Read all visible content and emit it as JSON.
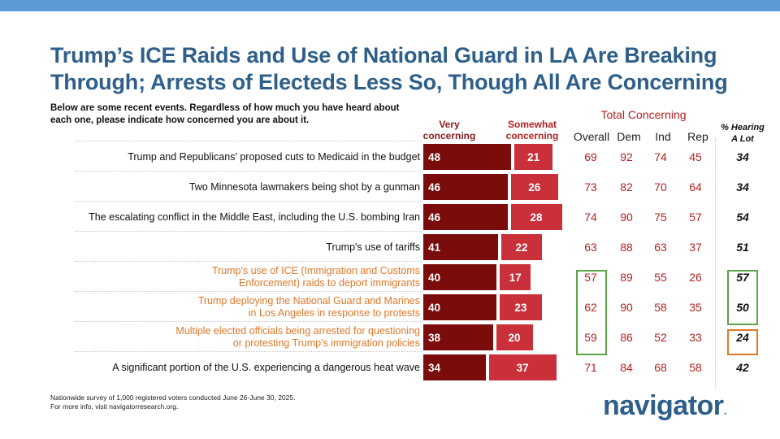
{
  "title": "Trump’s ICE Raids and Use of National Guard in LA Are Breaking Through; Arrests of Electeds Less So, Though All Are Concerning",
  "question": "Below are some recent events. Regardless of how much you have heard about each one, please indicate how concerned you are about it.",
  "headers": {
    "very": "Very concerning",
    "somewhat": "Somewhat concerning",
    "total": "Total Concerning",
    "overall": "Overall",
    "dem": "Dem",
    "ind": "Ind",
    "rep": "Rep",
    "hearing": "% Hearing A Lot"
  },
  "colors": {
    "title": "#2e5f8a",
    "very": "#7a0c0c",
    "somewhat": "#c9303a",
    "highlight_orange": "#e0782a",
    "box_green": "#5aa647",
    "box_orange": "#e0782a",
    "topbar": "#5b9bd5"
  },
  "chart_data": {
    "type": "bar",
    "stacked": true,
    "orientation": "horizontal",
    "categories": [
      "Trump and Republicans' proposed cuts to Medicaid in the budget",
      "Two Minnesota lawmakers being shot by a gunman",
      "The escalating conflict in the Middle East, including the U.S. bombing Iran",
      "Trump's use of tariffs",
      "Trump's use of ICE (Immigration and Customs Enforcement) raids to deport immigrants",
      "Trump deploying the National Guard and Marines in Los Angeles in response to protests",
      "Multiple elected officials being arrested for questioning or protesting Trump's immigration policies",
      "A significant portion of the U.S. experiencing a dangerous heat wave"
    ],
    "series": [
      {
        "name": "Very concerning",
        "values": [
          48,
          46,
          46,
          41,
          40,
          40,
          38,
          34
        ]
      },
      {
        "name": "Somewhat concerning",
        "values": [
          21,
          26,
          28,
          22,
          17,
          23,
          20,
          37
        ]
      }
    ],
    "table": {
      "overall": [
        69,
        73,
        74,
        63,
        57,
        62,
        59,
        71
      ],
      "dem": [
        92,
        82,
        90,
        88,
        89,
        90,
        86,
        84
      ],
      "ind": [
        74,
        70,
        75,
        63,
        55,
        58,
        52,
        68
      ],
      "rep": [
        45,
        64,
        57,
        37,
        26,
        35,
        33,
        58
      ],
      "hearing_a_lot": [
        34,
        34,
        54,
        51,
        57,
        50,
        24,
        42
      ]
    },
    "highlighted_rows": [
      4,
      5,
      6
    ]
  },
  "footer": {
    "line1": "Nationwide survey of 1,000 registered voters conducted June 26-June 30, 2025.",
    "line2": "For more info, visit navigatorresearch.org."
  },
  "logo": "navigator",
  "logo_dot": "."
}
